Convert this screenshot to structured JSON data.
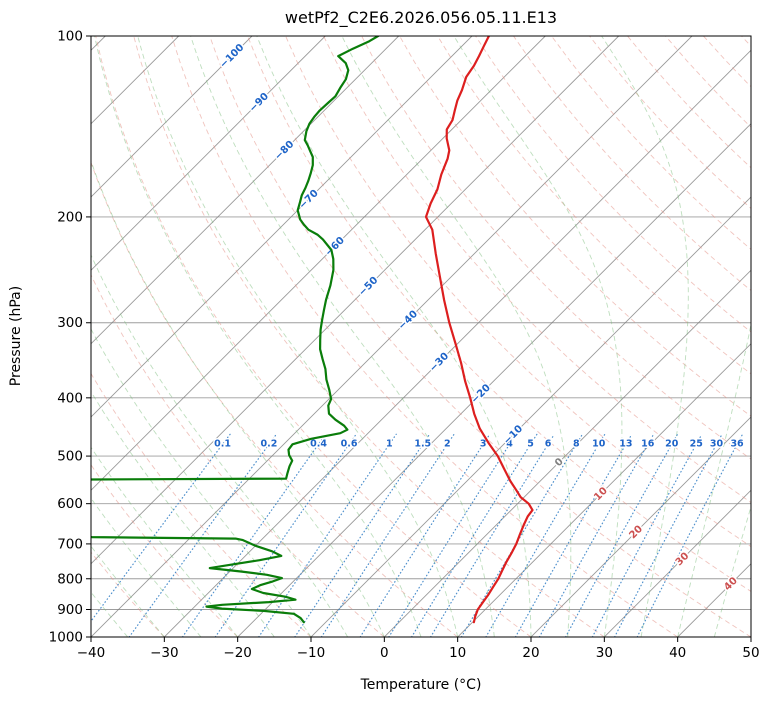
{
  "title": "wetPf2_C2E6.2026.056.05.11.E13",
  "colors": {
    "temperature": "#dd1f1f",
    "dewpoint": "#0a7d0a",
    "isotherm": "#808080",
    "pressure_grid": "#8c8c8c",
    "dry_adiabat": "#e49488",
    "moist_adiabat": "#7dbd7d",
    "mixing_ratio": "#3d85c8",
    "iso_label_neg": "#1e64c8",
    "iso_label_zero": "#808080",
    "iso_label_pos": "#cc5050",
    "mix_label": "#1e64c8",
    "axis_text": "#000000",
    "border": "#000000"
  },
  "axes": {
    "x_ticks": [
      -40,
      -30,
      -20,
      -10,
      0,
      10,
      20,
      30,
      40,
      50
    ],
    "y_ticks": [
      100,
      200,
      300,
      400,
      500,
      600,
      700,
      800,
      900,
      1000
    ]
  },
  "chart_data": {
    "type": "line",
    "variant": "skew-t-log-p",
    "title": "wetPf2_C2E6.2026.056.05.11.E13",
    "xlabel": "Temperature (°C)",
    "ylabel": "Pressure (hPa)",
    "x_range": [
      -40,
      50
    ],
    "p_range": [
      100,
      1000
    ],
    "skew": "45deg",
    "grid": true,
    "isotherms": {
      "start": -120,
      "end": 50,
      "step": 10,
      "labels": [
        {
          "t": -100,
          "p": 108
        },
        {
          "t": -90,
          "p": 129
        },
        {
          "t": -80,
          "p": 155
        },
        {
          "t": -70,
          "p": 187
        },
        {
          "t": -60,
          "p": 224
        },
        {
          "t": -50,
          "p": 261
        },
        {
          "t": -40,
          "p": 297
        },
        {
          "t": -30,
          "p": 349
        },
        {
          "t": -20,
          "p": 394
        },
        {
          "t": -10,
          "p": 461
        },
        {
          "t": 0,
          "p": 512
        },
        {
          "t": 10,
          "p": 578
        },
        {
          "t": 20,
          "p": 669
        },
        {
          "t": 30,
          "p": 742
        },
        {
          "t": 40,
          "p": 816
        }
      ]
    },
    "dry_adiabats": {
      "start": -40,
      "end": 190,
      "step": 10
    },
    "moist_adiabats": {
      "start": -40,
      "end": 45,
      "step": 5
    },
    "mixing_ratio": {
      "values": [
        0.1,
        0.2,
        0.4,
        0.6,
        1,
        1.5,
        2,
        3,
        4,
        5,
        6,
        8,
        10,
        13,
        16,
        20,
        25,
        30,
        36
      ],
      "label_pressure": 478,
      "top_pressure": 450
    },
    "series": [
      {
        "name": "temperature",
        "units": [
          "hPa",
          "degC"
        ],
        "points": [
          [
            945,
            10.2
          ],
          [
            925,
            9.6
          ],
          [
            900,
            9.0
          ],
          [
            875,
            8.7
          ],
          [
            850,
            8.4
          ],
          [
            825,
            8.0
          ],
          [
            800,
            7.6
          ],
          [
            775,
            7.0
          ],
          [
            750,
            6.4
          ],
          [
            725,
            5.9
          ],
          [
            700,
            5.3
          ],
          [
            675,
            4.5
          ],
          [
            650,
            3.7
          ],
          [
            630,
            3.1
          ],
          [
            615,
            2.9
          ],
          [
            600,
            1.5
          ],
          [
            585,
            -0.5
          ],
          [
            570,
            -2.0
          ],
          [
            550,
            -4.1
          ],
          [
            525,
            -6.6
          ],
          [
            500,
            -9.2
          ],
          [
            475,
            -12.3
          ],
          [
            450,
            -15.4
          ],
          [
            425,
            -18.2
          ],
          [
            400,
            -20.9
          ],
          [
            375,
            -23.9
          ],
          [
            350,
            -26.9
          ],
          [
            325,
            -30.3
          ],
          [
            300,
            -34.0
          ],
          [
            275,
            -37.8
          ],
          [
            250,
            -41.8
          ],
          [
            230,
            -45.3
          ],
          [
            210,
            -49.0
          ],
          [
            200,
            -51.6
          ],
          [
            190,
            -52.8
          ],
          [
            180,
            -53.8
          ],
          [
            170,
            -55.3
          ],
          [
            160,
            -56.6
          ],
          [
            155,
            -57.5
          ],
          [
            148,
            -59.5
          ],
          [
            143,
            -60.7
          ],
          [
            138,
            -61.2
          ],
          [
            133,
            -62.2
          ],
          [
            128,
            -63.2
          ],
          [
            123,
            -64.0
          ],
          [
            117,
            -65.2
          ],
          [
            112,
            -65.7
          ],
          [
            108,
            -66.3
          ],
          [
            104,
            -67.0
          ],
          [
            100,
            -67.7
          ]
        ]
      },
      {
        "name": "dewpoint",
        "units": [
          "hPa",
          "degC"
        ],
        "points": [
          [
            945,
            -13.0
          ],
          [
            930,
            -14.0
          ],
          [
            915,
            -15.5
          ],
          [
            905,
            -20.0
          ],
          [
            897,
            -26.0
          ],
          [
            890,
            -28.4
          ],
          [
            884,
            -26.5
          ],
          [
            875,
            -20.5
          ],
          [
            867,
            -17.2
          ],
          [
            857,
            -19.0
          ],
          [
            845,
            -22.5
          ],
          [
            832,
            -24.6
          ],
          [
            820,
            -24.0
          ],
          [
            808,
            -22.8
          ],
          [
            798,
            -22.0
          ],
          [
            788,
            -24.5
          ],
          [
            778,
            -28.5
          ],
          [
            768,
            -33.2
          ],
          [
            757,
            -30.5
          ],
          [
            745,
            -27.5
          ],
          [
            733,
            -25.1
          ],
          [
            720,
            -27.0
          ],
          [
            705,
            -30.0
          ],
          [
            690,
            -32.5
          ],
          [
            686,
            -33.7
          ],
          [
            682,
            -53.5
          ],
          [
            675,
            -60.0
          ],
          [
            665,
            -64.0
          ],
          [
            640,
            -66.0
          ],
          [
            610,
            -66.5
          ],
          [
            580,
            -64.0
          ],
          [
            555,
            -62.0
          ],
          [
            547,
            -61.5
          ],
          [
            545,
            -35.0
          ],
          [
            535,
            -35.5
          ],
          [
            520,
            -36.2
          ],
          [
            509,
            -36.6
          ],
          [
            498,
            -37.8
          ],
          [
            488,
            -38.6
          ],
          [
            478,
            -38.8
          ],
          [
            468,
            -37.0
          ],
          [
            458,
            -33.8
          ],
          [
            452,
            -33.3
          ],
          [
            445,
            -34.3
          ],
          [
            435,
            -36.3
          ],
          [
            425,
            -38.0
          ],
          [
            412,
            -39.2
          ],
          [
            402,
            -39.7
          ],
          [
            388,
            -41.2
          ],
          [
            373,
            -43.0
          ],
          [
            358,
            -44.6
          ],
          [
            345,
            -46.3
          ],
          [
            332,
            -48.0
          ],
          [
            320,
            -49.3
          ],
          [
            308,
            -50.6
          ],
          [
            297,
            -51.7
          ],
          [
            286,
            -52.8
          ],
          [
            275,
            -53.9
          ],
          [
            260,
            -55.3
          ],
          [
            245,
            -57.0
          ],
          [
            235,
            -58.5
          ],
          [
            227,
            -60.0
          ],
          [
            218,
            -62.6
          ],
          [
            214,
            -64.0
          ],
          [
            210,
            -65.9
          ],
          [
            206,
            -67.2
          ],
          [
            202,
            -68.4
          ],
          [
            198,
            -69.3
          ],
          [
            195,
            -70.0
          ],
          [
            189,
            -70.8
          ],
          [
            184,
            -71.5
          ],
          [
            179,
            -72.0
          ],
          [
            174,
            -72.6
          ],
          [
            169,
            -73.3
          ],
          [
            164,
            -74.1
          ],
          [
            159,
            -75.2
          ],
          [
            155,
            -76.5
          ],
          [
            152,
            -77.5
          ],
          [
            149,
            -78.6
          ],
          [
            144,
            -79.6
          ],
          [
            140,
            -80.2
          ],
          [
            136,
            -80.5
          ],
          [
            133,
            -80.6
          ],
          [
            129,
            -80.5
          ],
          [
            126,
            -80.4
          ],
          [
            122,
            -80.9
          ],
          [
            118,
            -81.3
          ],
          [
            114,
            -82.2
          ],
          [
            111,
            -83.5
          ],
          [
            108,
            -85.5
          ],
          [
            105,
            -84.5
          ],
          [
            102,
            -83.3
          ],
          [
            100,
            -82.8
          ]
        ]
      }
    ]
  }
}
